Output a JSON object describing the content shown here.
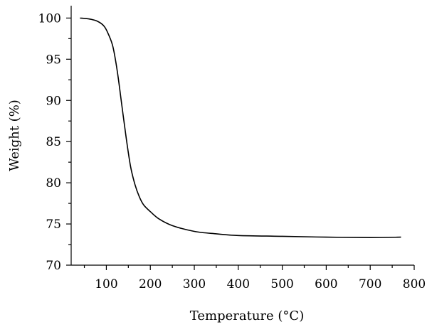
{
  "chart_data": {
    "type": "line",
    "title": "",
    "xlabel": "Temperature (°C)",
    "ylabel": "Weight (%)",
    "xlim": [
      20,
      800
    ],
    "ylim": [
      70,
      101.5
    ],
    "x_ticks": [
      100,
      200,
      300,
      400,
      500,
      600,
      700,
      800
    ],
    "y_ticks": [
      70,
      75,
      80,
      85,
      90,
      95,
      100
    ],
    "grid": false,
    "legend": "none",
    "series": [
      {
        "x": [
          40,
          60,
          80,
          95,
          105,
          115,
          125,
          135,
          145,
          155,
          165,
          175,
          185,
          200,
          220,
          250,
          300,
          350,
          400,
          500,
          600,
          700,
          770
        ],
        "y": [
          100.0,
          99.9,
          99.6,
          99.0,
          98.0,
          96.5,
          93.5,
          89.5,
          85.5,
          82.0,
          79.8,
          78.3,
          77.3,
          76.5,
          75.6,
          74.8,
          74.1,
          73.8,
          73.6,
          73.5,
          73.4,
          73.35,
          73.4
        ]
      }
    ]
  }
}
